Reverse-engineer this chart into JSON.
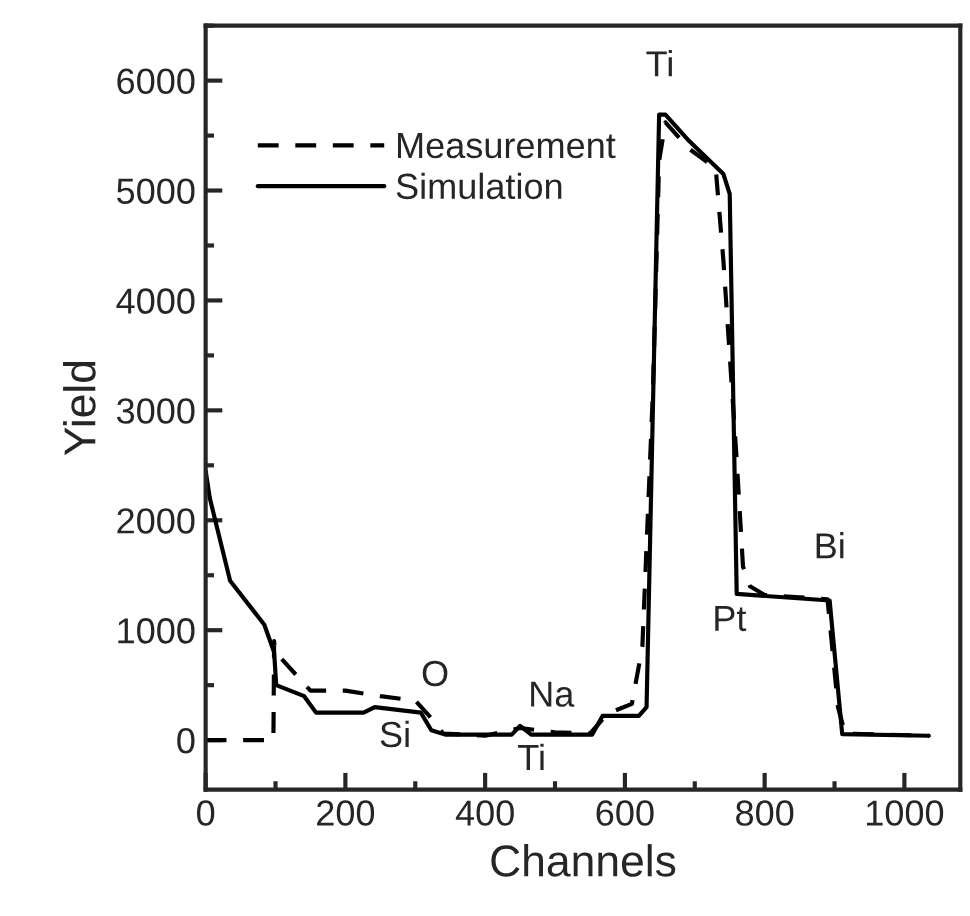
{
  "chart_data": {
    "type": "line",
    "xlabel": "Channels",
    "ylabel": "Yield",
    "xlim": [
      0,
      1080
    ],
    "ylim": [
      -450,
      6500
    ],
    "xticks": [
      0,
      200,
      400,
      600,
      800,
      1000
    ],
    "yticks": [
      0,
      1000,
      2000,
      3000,
      4000,
      5000,
      6000
    ],
    "legend": "top left",
    "grid": false,
    "series": [
      {
        "name": "Measurement",
        "color": "#000000",
        "line_style": "dashed",
        "x": [
          0,
          97,
          98,
          99,
          110,
          150,
          200,
          250,
          300,
          320,
          340,
          400,
          450,
          500,
          550,
          575,
          610,
          625,
          640,
          649,
          658,
          692,
          730,
          741,
          760,
          769,
          779,
          800,
          850,
          890,
          905,
          915,
          1035
        ],
        "values": [
          0,
          0,
          900,
          800,
          730,
          450,
          450,
          400,
          360,
          220,
          60,
          40,
          110,
          70,
          60,
          240,
          330,
          850,
          3150,
          5270,
          5620,
          5380,
          5200,
          4360,
          2550,
          1580,
          1400,
          1320,
          1300,
          1280,
          300,
          60,
          40
        ]
      },
      {
        "name": "Simulation",
        "color": "#000000",
        "line_style": "solid",
        "x": [
          0,
          6,
          35,
          84,
          98,
          101,
          141,
          158,
          226,
          242,
          308,
          323,
          343,
          438,
          450,
          466,
          553,
          568,
          620,
          631,
          649,
          658,
          692,
          741,
          750,
          760,
          893,
          911,
          1035
        ],
        "values": [
          2450,
          2200,
          1450,
          1050,
          800,
          500,
          400,
          250,
          250,
          300,
          250,
          90,
          50,
          50,
          130,
          50,
          50,
          220,
          220,
          300,
          5690,
          5690,
          5450,
          5150,
          4970,
          1330,
          1270,
          55,
          40
        ]
      }
    ],
    "annotations": [
      "Ti",
      "O",
      "Si",
      "Na",
      "Ti",
      "Pt",
      "Bi"
    ]
  }
}
